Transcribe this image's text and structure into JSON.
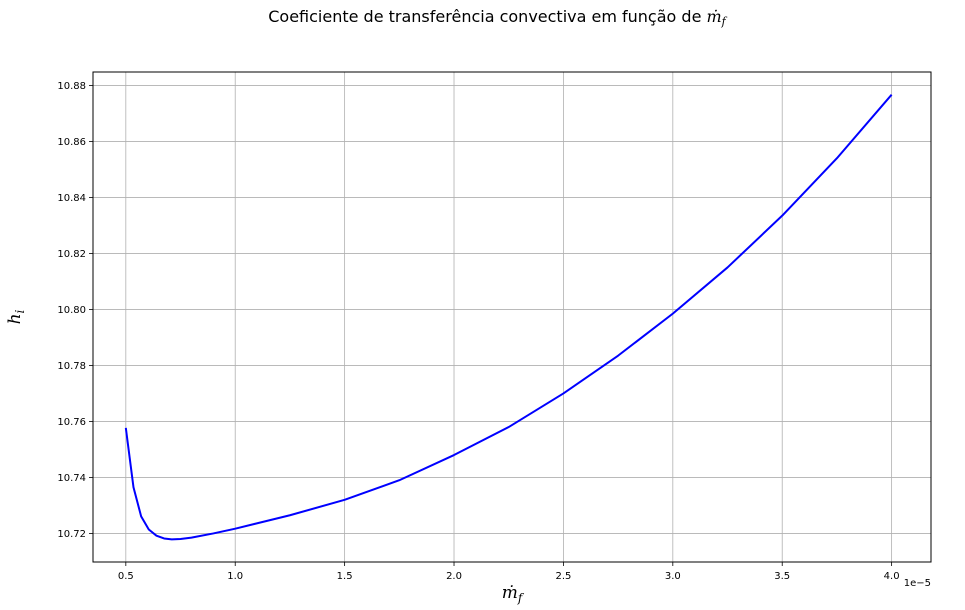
{
  "chart_data": {
    "type": "line",
    "title": "Coeficiente de transferência convectiva em função de",
    "title_symbol": "ṁ",
    "title_symbol_sub": "f",
    "xlabel": "ṁ",
    "xlabel_sub": "f",
    "ylabel": "h",
    "ylabel_sub": "i",
    "x_offset_label": "1e−5",
    "xlim": [
      0.35,
      4.18
    ],
    "ylim": [
      10.7098,
      10.8848
    ],
    "xticks": [
      0.5,
      1.0,
      1.5,
      2.0,
      2.5,
      3.0,
      3.5,
      4.0
    ],
    "xtick_labels": [
      "0.5",
      "1.0",
      "1.5",
      "2.0",
      "2.5",
      "3.0",
      "3.5",
      "4.0"
    ],
    "yticks": [
      10.72,
      10.74,
      10.76,
      10.78,
      10.8,
      10.82,
      10.84,
      10.86,
      10.88
    ],
    "ytick_labels": [
      "10.72",
      "10.74",
      "10.76",
      "10.78",
      "10.80",
      "10.82",
      "10.84",
      "10.86",
      "10.88"
    ],
    "grid": true,
    "color": "#0000ff",
    "series": [
      {
        "x": [
          0.5,
          0.535,
          0.57,
          0.605,
          0.64,
          0.675,
          0.71,
          0.75,
          0.8,
          0.9,
          1.0,
          1.25,
          1.5,
          1.75,
          2.0,
          2.25,
          2.5,
          2.75,
          3.0,
          3.25,
          3.5,
          3.75,
          4.0
        ],
        "y": [
          10.7577,
          10.7365,
          10.7261,
          10.7214,
          10.7192,
          10.7182,
          10.7179,
          10.718,
          10.7185,
          10.72,
          10.7217,
          10.7265,
          10.732,
          10.739,
          10.748,
          10.758,
          10.77,
          10.7835,
          10.7985,
          10.815,
          10.8335,
          10.854,
          10.8767
        ]
      }
    ]
  }
}
